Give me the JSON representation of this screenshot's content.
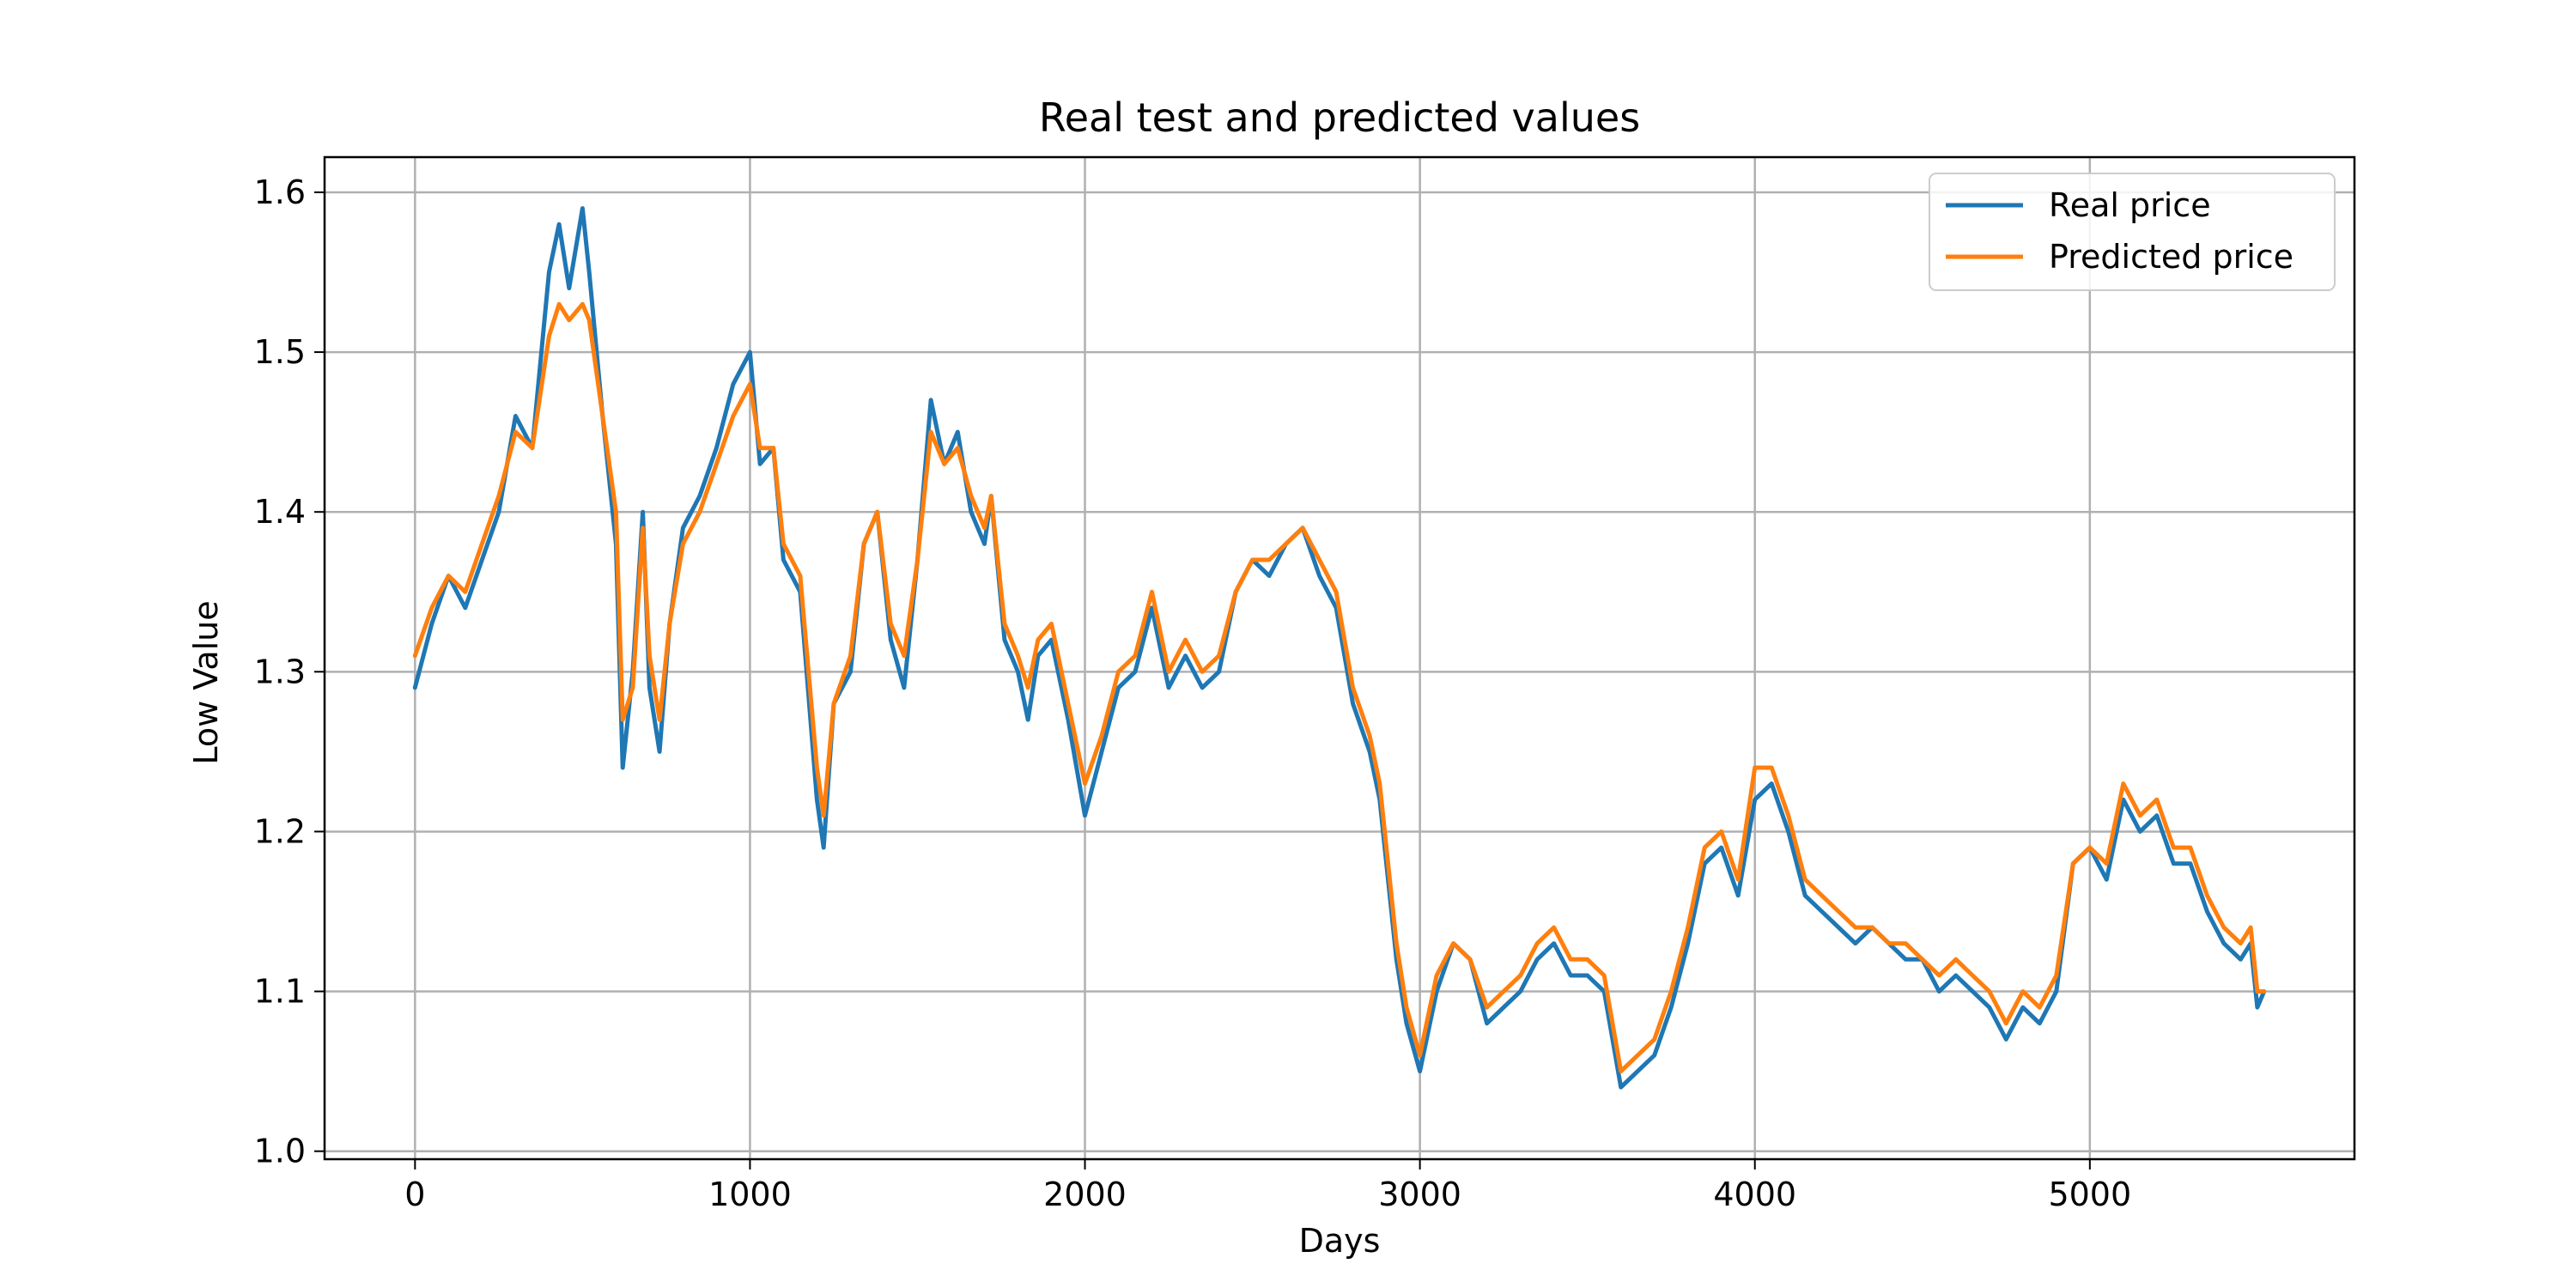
{
  "chart_data": {
    "type": "line",
    "title": "Real test and predicted values",
    "xlabel": "Days",
    "ylabel": "Low Value",
    "xlim": [
      -270,
      5790
    ],
    "ylim": [
      0.995,
      1.622
    ],
    "xticks": [
      0,
      1000,
      2000,
      3000,
      4000,
      5000
    ],
    "yticks": [
      1.0,
      1.1,
      1.2,
      1.3,
      1.4,
      1.5,
      1.6
    ],
    "xtick_labels": [
      "0",
      "1000",
      "2000",
      "3000",
      "4000",
      "5000"
    ],
    "ytick_labels": [
      "1.0",
      "1.1",
      "1.2",
      "1.3",
      "1.4",
      "1.5",
      "1.6"
    ],
    "grid": true,
    "legend_position": "top-right",
    "series": [
      {
        "name": "Real price",
        "color": "#1f77b4",
        "x": [
          0,
          50,
          100,
          150,
          200,
          250,
          300,
          350,
          400,
          430,
          460,
          500,
          520,
          560,
          600,
          620,
          650,
          680,
          700,
          730,
          760,
          800,
          850,
          900,
          950,
          1000,
          1030,
          1070,
          1100,
          1150,
          1200,
          1220,
          1250,
          1300,
          1340,
          1380,
          1420,
          1460,
          1500,
          1540,
          1580,
          1620,
          1660,
          1700,
          1720,
          1760,
          1800,
          1830,
          1860,
          1900,
          1950,
          2000,
          2050,
          2100,
          2150,
          2200,
          2250,
          2300,
          2350,
          2400,
          2450,
          2500,
          2550,
          2600,
          2650,
          2700,
          2750,
          2800,
          2850,
          2880,
          2900,
          2930,
          2960,
          3000,
          3050,
          3100,
          3150,
          3200,
          3250,
          3300,
          3350,
          3400,
          3450,
          3500,
          3550,
          3600,
          3650,
          3700,
          3750,
          3800,
          3850,
          3900,
          3950,
          4000,
          4050,
          4100,
          4150,
          4200,
          4250,
          4300,
          4350,
          4400,
          4450,
          4500,
          4550,
          4600,
          4650,
          4700,
          4750,
          4800,
          4850,
          4900,
          4950,
          5000,
          5050,
          5100,
          5150,
          5200,
          5250,
          5300,
          5350,
          5400,
          5450,
          5480,
          5500,
          5520
        ],
        "y": [
          1.29,
          1.33,
          1.36,
          1.34,
          1.37,
          1.4,
          1.46,
          1.44,
          1.55,
          1.58,
          1.54,
          1.59,
          1.55,
          1.46,
          1.38,
          1.24,
          1.3,
          1.4,
          1.29,
          1.25,
          1.33,
          1.39,
          1.41,
          1.44,
          1.48,
          1.5,
          1.43,
          1.44,
          1.37,
          1.35,
          1.22,
          1.19,
          1.28,
          1.3,
          1.38,
          1.4,
          1.32,
          1.29,
          1.37,
          1.47,
          1.43,
          1.45,
          1.4,
          1.38,
          1.41,
          1.32,
          1.3,
          1.27,
          1.31,
          1.32,
          1.27,
          1.21,
          1.25,
          1.29,
          1.3,
          1.34,
          1.29,
          1.31,
          1.29,
          1.3,
          1.35,
          1.37,
          1.36,
          1.38,
          1.39,
          1.36,
          1.34,
          1.28,
          1.25,
          1.22,
          1.18,
          1.12,
          1.08,
          1.05,
          1.1,
          1.13,
          1.12,
          1.08,
          1.09,
          1.1,
          1.12,
          1.13,
          1.11,
          1.11,
          1.1,
          1.04,
          1.05,
          1.06,
          1.09,
          1.13,
          1.18,
          1.19,
          1.16,
          1.22,
          1.23,
          1.2,
          1.16,
          1.15,
          1.14,
          1.13,
          1.14,
          1.13,
          1.12,
          1.12,
          1.1,
          1.11,
          1.1,
          1.09,
          1.07,
          1.09,
          1.08,
          1.1,
          1.18,
          1.19,
          1.17,
          1.22,
          1.2,
          1.21,
          1.18,
          1.18,
          1.15,
          1.13,
          1.12,
          1.13,
          1.09,
          1.1
        ]
      },
      {
        "name": "Predicted price",
        "color": "#ff7f0e",
        "x": [
          0,
          50,
          100,
          150,
          200,
          250,
          300,
          350,
          400,
          430,
          460,
          500,
          520,
          560,
          600,
          620,
          650,
          680,
          700,
          730,
          760,
          800,
          850,
          900,
          950,
          1000,
          1030,
          1070,
          1100,
          1150,
          1200,
          1220,
          1250,
          1300,
          1340,
          1380,
          1420,
          1460,
          1500,
          1540,
          1580,
          1620,
          1660,
          1700,
          1720,
          1760,
          1800,
          1830,
          1860,
          1900,
          1950,
          2000,
          2050,
          2100,
          2150,
          2200,
          2250,
          2300,
          2350,
          2400,
          2450,
          2500,
          2550,
          2600,
          2650,
          2700,
          2750,
          2800,
          2850,
          2880,
          2900,
          2930,
          2960,
          3000,
          3050,
          3100,
          3150,
          3200,
          3250,
          3300,
          3350,
          3400,
          3450,
          3500,
          3550,
          3600,
          3650,
          3700,
          3750,
          3800,
          3850,
          3900,
          3950,
          4000,
          4050,
          4100,
          4150,
          4200,
          4250,
          4300,
          4350,
          4400,
          4450,
          4500,
          4550,
          4600,
          4650,
          4700,
          4750,
          4800,
          4850,
          4900,
          4950,
          5000,
          5050,
          5100,
          5150,
          5200,
          5250,
          5300,
          5350,
          5400,
          5450,
          5480,
          5500,
          5520
        ],
        "y": [
          1.31,
          1.34,
          1.36,
          1.35,
          1.38,
          1.41,
          1.45,
          1.44,
          1.51,
          1.53,
          1.52,
          1.53,
          1.52,
          1.46,
          1.4,
          1.27,
          1.29,
          1.39,
          1.31,
          1.27,
          1.33,
          1.38,
          1.4,
          1.43,
          1.46,
          1.48,
          1.44,
          1.44,
          1.38,
          1.36,
          1.24,
          1.21,
          1.28,
          1.31,
          1.38,
          1.4,
          1.33,
          1.31,
          1.37,
          1.45,
          1.43,
          1.44,
          1.41,
          1.39,
          1.41,
          1.33,
          1.31,
          1.29,
          1.32,
          1.33,
          1.28,
          1.23,
          1.26,
          1.3,
          1.31,
          1.35,
          1.3,
          1.32,
          1.3,
          1.31,
          1.35,
          1.37,
          1.37,
          1.38,
          1.39,
          1.37,
          1.35,
          1.29,
          1.26,
          1.23,
          1.19,
          1.13,
          1.09,
          1.06,
          1.11,
          1.13,
          1.12,
          1.09,
          1.1,
          1.11,
          1.13,
          1.14,
          1.12,
          1.12,
          1.11,
          1.05,
          1.06,
          1.07,
          1.1,
          1.14,
          1.19,
          1.2,
          1.17,
          1.24,
          1.24,
          1.21,
          1.17,
          1.16,
          1.15,
          1.14,
          1.14,
          1.13,
          1.13,
          1.12,
          1.11,
          1.12,
          1.11,
          1.1,
          1.08,
          1.1,
          1.09,
          1.11,
          1.18,
          1.19,
          1.18,
          1.23,
          1.21,
          1.22,
          1.19,
          1.19,
          1.16,
          1.14,
          1.13,
          1.14,
          1.1,
          1.1
        ]
      }
    ]
  }
}
